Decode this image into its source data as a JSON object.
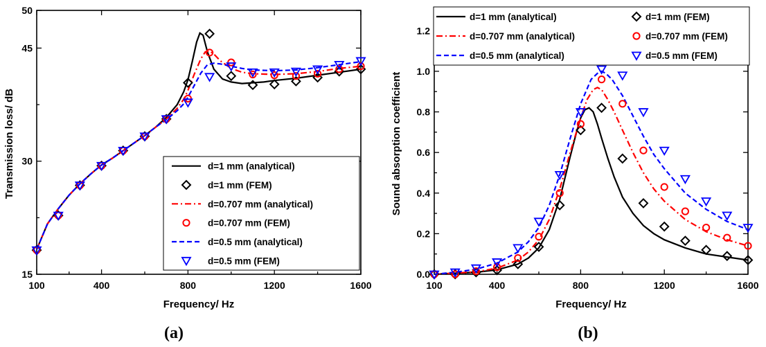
{
  "chart_data": [
    {
      "type": "line",
      "panel_label": "(a)",
      "xlabel": "Frequency/ Hz",
      "ylabel": "Transmission loss/ dB",
      "xlim": [
        100,
        1600
      ],
      "ylim": [
        15,
        50
      ],
      "xticks": [
        100,
        400,
        800,
        1200,
        1600
      ],
      "yticks": [
        15,
        30,
        45,
        50
      ],
      "grid": false,
      "legend_position": "bottom-right",
      "series": [
        {
          "name": "d=1 mm (analytical)",
          "kind": "line",
          "color": "#000000",
          "dash": "solid",
          "x": [
            100,
            150,
            200,
            250,
            300,
            350,
            400,
            450,
            500,
            550,
            600,
            650,
            700,
            750,
            780,
            800,
            820,
            840,
            855,
            870,
            890,
            920,
            960,
            1000,
            1050,
            1100,
            1150,
            1200,
            1300,
            1400,
            1500,
            1600
          ],
          "y": [
            18.3,
            21.7,
            23.7,
            25.5,
            27.0,
            28.3,
            29.5,
            30.4,
            31.4,
            32.4,
            33.4,
            34.5,
            35.8,
            37.5,
            39.2,
            40.8,
            43.2,
            45.8,
            47.0,
            46.7,
            44.5,
            42.2,
            40.9,
            40.5,
            40.3,
            40.4,
            40.5,
            40.7,
            41.0,
            41.4,
            41.8,
            42.2
          ]
        },
        {
          "name": "d=1 mm (FEM)",
          "kind": "marker",
          "marker": "diamond",
          "color": "#000000",
          "x": [
            100,
            200,
            300,
            400,
            500,
            600,
            700,
            800,
            900,
            1000,
            1100,
            1200,
            1300,
            1400,
            1500,
            1600
          ],
          "y": [
            18.2,
            22.8,
            26.8,
            29.4,
            31.4,
            33.3,
            35.6,
            40.4,
            46.9,
            41.3,
            40.1,
            40.2,
            40.6,
            41.1,
            41.9,
            42.2
          ]
        },
        {
          "name": "d=0.707 mm (analytical)",
          "kind": "line",
          "color": "#ff0000",
          "dash": "dashdot",
          "x": [
            100,
            150,
            200,
            250,
            300,
            350,
            400,
            450,
            500,
            550,
            600,
            650,
            700,
            750,
            780,
            800,
            830,
            860,
            880,
            900,
            920,
            950,
            1000,
            1050,
            1100,
            1200,
            1300,
            1400,
            1500,
            1600
          ],
          "y": [
            18.3,
            21.7,
            23.7,
            25.5,
            27.0,
            28.3,
            29.5,
            30.4,
            31.4,
            32.4,
            33.4,
            34.5,
            35.6,
            37.0,
            38.2,
            39.4,
            41.6,
            43.6,
            44.5,
            44.6,
            44.2,
            43.3,
            42.3,
            41.8,
            41.6,
            41.5,
            41.6,
            41.9,
            42.3,
            42.6
          ]
        },
        {
          "name": "d=0.707 mm (FEM)",
          "kind": "marker",
          "marker": "circle",
          "color": "#ff0000",
          "x": [
            100,
            200,
            300,
            400,
            500,
            600,
            700,
            800,
            900,
            1000,
            1100,
            1200,
            1300,
            1400,
            1500,
            1600
          ],
          "y": [
            18.2,
            22.8,
            26.8,
            29.4,
            31.4,
            33.3,
            35.6,
            38.3,
            44.4,
            43.1,
            41.5,
            41.4,
            41.3,
            41.6,
            42.2,
            42.6
          ]
        },
        {
          "name": "d=0.5 mm (analytical)",
          "kind": "line",
          "color": "#0000ff",
          "dash": "dashed",
          "x": [
            100,
            150,
            200,
            250,
            300,
            350,
            400,
            450,
            500,
            550,
            600,
            650,
            700,
            750,
            780,
            800,
            830,
            860,
            890,
            920,
            950,
            1000,
            1050,
            1100,
            1200,
            1300,
            1400,
            1500,
            1600
          ],
          "y": [
            18.3,
            21.7,
            23.7,
            25.5,
            27.0,
            28.3,
            29.5,
            30.4,
            31.4,
            32.4,
            33.4,
            34.5,
            35.5,
            36.7,
            37.6,
            38.5,
            40.1,
            41.7,
            42.8,
            43.0,
            42.9,
            42.6,
            42.3,
            42.1,
            42.0,
            42.1,
            42.4,
            42.8,
            43.2
          ]
        },
        {
          "name": "d=0.5 mm (FEM)",
          "kind": "marker",
          "marker": "triangle-down",
          "color": "#0000ff",
          "x": [
            100,
            200,
            300,
            400,
            500,
            600,
            700,
            800,
            900,
            1000,
            1100,
            1200,
            1300,
            1400,
            1500,
            1600
          ],
          "y": [
            18.2,
            22.8,
            26.8,
            29.4,
            31.4,
            33.3,
            35.6,
            37.8,
            41.2,
            42.6,
            41.8,
            41.8,
            41.9,
            42.2,
            42.8,
            43.3
          ]
        }
      ]
    },
    {
      "type": "line",
      "panel_label": "(b)",
      "xlabel": "Frequency/ Hz",
      "ylabel": "Sound absorption coefficient",
      "xlim": [
        100,
        1600
      ],
      "ylim": [
        0.0,
        1.3
      ],
      "xticks": [
        100,
        400,
        800,
        1200,
        1600
      ],
      "yticks": [
        0.0,
        0.2,
        0.4,
        0.6,
        0.8,
        1.0,
        1.2
      ],
      "y_tick_labels": [
        "0.0",
        "0.2",
        "0.4",
        "0.6",
        "0.8",
        "1.0",
        "1.2"
      ],
      "grid": false,
      "legend_position": "top",
      "series": [
        {
          "name": "d=1 mm (analytical)",
          "kind": "line",
          "color": "#000000",
          "dash": "solid",
          "x": [
            100,
            200,
            300,
            400,
            500,
            550,
            600,
            650,
            700,
            750,
            780,
            800,
            820,
            840,
            860,
            880,
            900,
            930,
            960,
            1000,
            1050,
            1100,
            1150,
            1200,
            1300,
            1400,
            1500,
            1600
          ],
          "y": [
            0.0,
            0.005,
            0.01,
            0.022,
            0.05,
            0.08,
            0.13,
            0.22,
            0.37,
            0.58,
            0.7,
            0.77,
            0.81,
            0.82,
            0.8,
            0.74,
            0.67,
            0.57,
            0.48,
            0.38,
            0.3,
            0.24,
            0.2,
            0.17,
            0.13,
            0.1,
            0.085,
            0.07
          ]
        },
        {
          "name": "d=1 mm (FEM)",
          "kind": "marker",
          "marker": "diamond",
          "color": "#000000",
          "x": [
            100,
            200,
            300,
            400,
            500,
            600,
            700,
            800,
            900,
            1000,
            1100,
            1200,
            1300,
            1400,
            1500,
            1600
          ],
          "y": [
            0.0,
            0.0,
            0.01,
            0.02,
            0.05,
            0.135,
            0.34,
            0.71,
            0.82,
            0.57,
            0.35,
            0.235,
            0.165,
            0.12,
            0.09,
            0.07
          ]
        },
        {
          "name": "d=0.707 mm (analytical)",
          "kind": "line",
          "color": "#ff0000",
          "dash": "dashdot",
          "x": [
            100,
            200,
            300,
            400,
            500,
            550,
            600,
            650,
            700,
            750,
            800,
            830,
            860,
            880,
            900,
            930,
            960,
            1000,
            1050,
            1100,
            1150,
            1200,
            1300,
            1400,
            1500,
            1600
          ],
          "y": [
            0.0,
            0.006,
            0.012,
            0.03,
            0.07,
            0.11,
            0.17,
            0.27,
            0.42,
            0.6,
            0.77,
            0.86,
            0.91,
            0.92,
            0.91,
            0.86,
            0.8,
            0.71,
            0.6,
            0.5,
            0.42,
            0.36,
            0.27,
            0.21,
            0.17,
            0.14
          ]
        },
        {
          "name": "d=0.707 mm (FEM)",
          "kind": "marker",
          "marker": "circle",
          "color": "#ff0000",
          "x": [
            100,
            200,
            300,
            400,
            500,
            600,
            700,
            800,
            900,
            1000,
            1100,
            1200,
            1300,
            1400,
            1500,
            1600
          ],
          "y": [
            0.0,
            0.0,
            0.015,
            0.035,
            0.08,
            0.185,
            0.4,
            0.74,
            0.96,
            0.84,
            0.61,
            0.43,
            0.31,
            0.23,
            0.18,
            0.14
          ]
        },
        {
          "name": "d=0.5 mm (analytical)",
          "kind": "line",
          "color": "#0000ff",
          "dash": "dashed",
          "x": [
            100,
            200,
            300,
            400,
            500,
            550,
            600,
            650,
            700,
            750,
            800,
            850,
            880,
            900,
            920,
            950,
            1000,
            1050,
            1100,
            1150,
            1200,
            1300,
            1400,
            1500,
            1600
          ],
          "y": [
            0.0,
            0.01,
            0.025,
            0.055,
            0.11,
            0.16,
            0.23,
            0.34,
            0.49,
            0.67,
            0.84,
            0.96,
            0.99,
            1.0,
            0.99,
            0.96,
            0.88,
            0.78,
            0.68,
            0.59,
            0.52,
            0.4,
            0.32,
            0.26,
            0.22
          ]
        },
        {
          "name": "d=0.5 mm (FEM)",
          "kind": "marker",
          "marker": "triangle-down",
          "color": "#0000ff",
          "x": [
            100,
            200,
            300,
            400,
            500,
            600,
            700,
            800,
            900,
            1000,
            1100,
            1200,
            1300,
            1400,
            1500,
            1600
          ],
          "y": [
            0.0,
            0.01,
            0.03,
            0.06,
            0.13,
            0.26,
            0.49,
            0.8,
            1.01,
            0.98,
            0.8,
            0.61,
            0.47,
            0.36,
            0.29,
            0.23
          ]
        }
      ]
    }
  ]
}
